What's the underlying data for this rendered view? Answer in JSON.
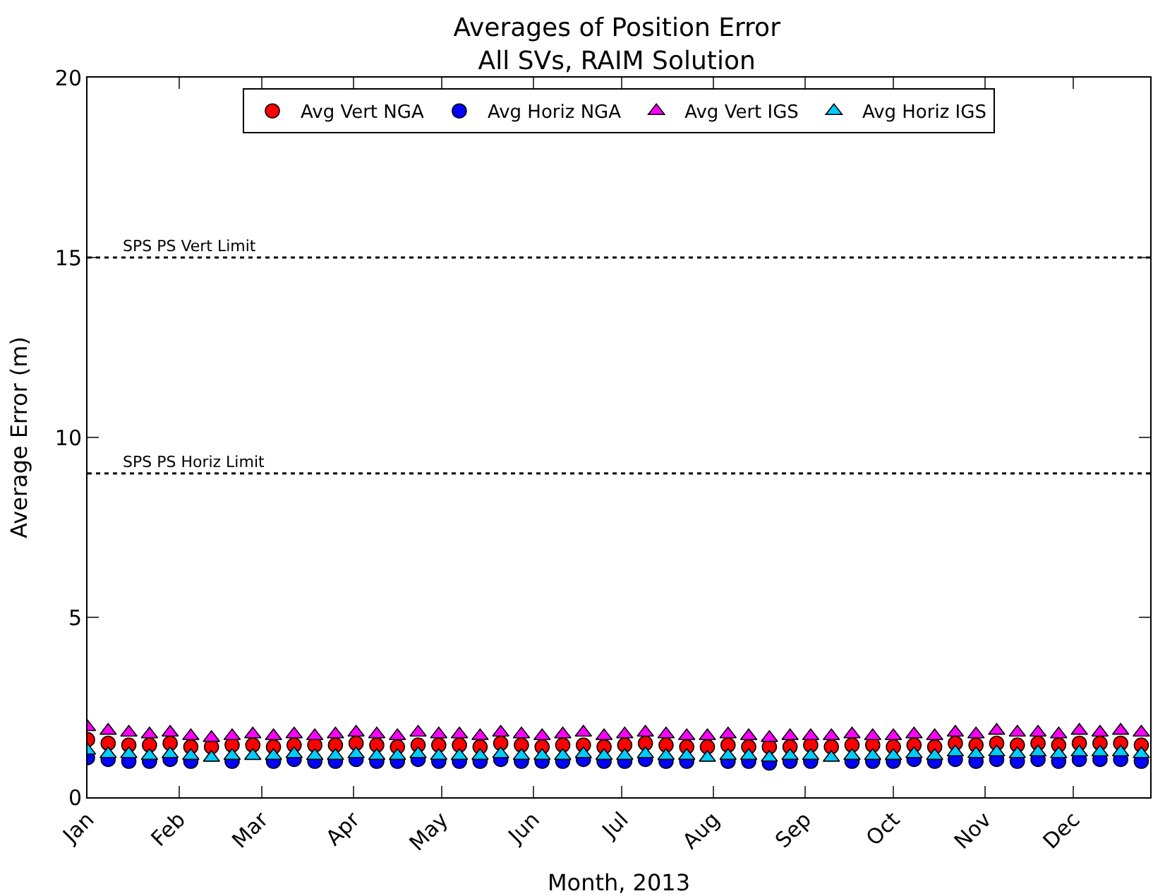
{
  "chart_data": {
    "type": "scatter",
    "title": "Averages of Position Error",
    "subtitle": "All SVs, RAIM Solution",
    "xlabel": "Month, 2013",
    "ylabel": "Average Error (m)",
    "x": [
      "2013-01-01",
      "2013-01-08",
      "2013-01-15",
      "2013-01-22",
      "2013-01-29",
      "2013-02-05",
      "2013-02-12",
      "2013-02-19",
      "2013-02-26",
      "2013-03-05",
      "2013-03-12",
      "2013-03-19",
      "2013-03-26",
      "2013-04-02",
      "2013-04-09",
      "2013-04-16",
      "2013-04-23",
      "2013-04-30",
      "2013-05-07",
      "2013-05-14",
      "2013-05-21",
      "2013-05-28",
      "2013-06-04",
      "2013-06-11",
      "2013-06-18",
      "2013-06-25",
      "2013-07-02",
      "2013-07-09",
      "2013-07-16",
      "2013-07-23",
      "2013-07-30",
      "2013-08-06",
      "2013-08-13",
      "2013-08-20",
      "2013-08-27",
      "2013-09-03",
      "2013-09-10",
      "2013-09-17",
      "2013-09-24",
      "2013-10-01",
      "2013-10-08",
      "2013-10-15",
      "2013-10-22",
      "2013-10-29",
      "2013-11-05",
      "2013-11-12",
      "2013-11-19",
      "2013-11-26",
      "2013-12-03",
      "2013-12-10",
      "2013-12-17",
      "2013-12-24"
    ],
    "series": [
      {
        "name": "Avg Vert NGA",
        "color": "#ff0000",
        "marker": "circle",
        "values": [
          1.6,
          1.5,
          1.45,
          1.45,
          1.5,
          1.4,
          1.4,
          1.45,
          1.45,
          1.4,
          1.45,
          1.45,
          1.45,
          1.5,
          1.45,
          1.4,
          1.45,
          1.45,
          1.45,
          1.4,
          1.5,
          1.45,
          1.4,
          1.45,
          1.45,
          1.4,
          1.45,
          1.5,
          1.45,
          1.4,
          1.4,
          1.45,
          1.4,
          1.4,
          1.4,
          1.45,
          1.4,
          1.45,
          1.45,
          1.4,
          1.45,
          1.4,
          1.5,
          1.45,
          1.5,
          1.45,
          1.5,
          1.45,
          1.5,
          1.5,
          1.5,
          1.45
        ]
      },
      {
        "name": "Avg Horiz NGA",
        "color": "#0000ff",
        "marker": "circle",
        "values": [
          1.1,
          1.05,
          1.0,
          1.0,
          1.05,
          1.0,
          null,
          1.0,
          null,
          1.0,
          1.05,
          1.0,
          1.0,
          1.05,
          1.0,
          1.0,
          1.05,
          1.0,
          1.0,
          1.0,
          1.05,
          1.0,
          1.0,
          1.0,
          1.05,
          1.0,
          1.0,
          1.05,
          1.0,
          1.0,
          null,
          1.0,
          1.0,
          0.95,
          1.0,
          1.0,
          null,
          1.0,
          1.0,
          1.0,
          1.05,
          1.0,
          1.05,
          1.0,
          1.05,
          1.0,
          1.05,
          1.0,
          1.05,
          1.05,
          1.05,
          1.0
        ]
      },
      {
        "name": "Avg Vert IGS",
        "color": "#ff00ff",
        "marker": "triangle",
        "values": [
          1.95,
          1.85,
          1.8,
          1.75,
          1.8,
          1.7,
          1.65,
          1.7,
          1.75,
          1.7,
          1.75,
          1.7,
          1.75,
          1.8,
          1.75,
          1.7,
          1.8,
          1.75,
          1.75,
          1.7,
          1.8,
          1.75,
          1.7,
          1.75,
          1.8,
          1.7,
          1.75,
          1.8,
          1.75,
          1.7,
          1.7,
          1.75,
          1.7,
          1.65,
          1.7,
          1.7,
          1.7,
          1.75,
          1.7,
          1.7,
          1.75,
          1.7,
          1.8,
          1.75,
          1.85,
          1.8,
          1.8,
          1.75,
          1.85,
          1.8,
          1.85,
          1.8
        ]
      },
      {
        "name": "Avg Horiz IGS",
        "color": "#00ccff",
        "marker": "triangle",
        "values": [
          1.3,
          1.2,
          1.2,
          1.15,
          1.2,
          1.15,
          1.1,
          1.15,
          1.15,
          1.15,
          1.2,
          1.15,
          1.15,
          1.2,
          1.15,
          1.15,
          1.2,
          1.15,
          1.15,
          1.15,
          1.2,
          1.15,
          1.15,
          1.15,
          1.2,
          1.15,
          1.15,
          1.2,
          1.15,
          1.15,
          1.1,
          1.15,
          1.15,
          1.1,
          1.15,
          1.15,
          1.1,
          1.15,
          1.15,
          1.15,
          1.2,
          1.15,
          1.25,
          1.2,
          1.25,
          1.2,
          1.25,
          1.2,
          1.25,
          1.25,
          1.25,
          1.2
        ]
      }
    ],
    "xlim": [
      "2013-01-01",
      "2013-12-27"
    ],
    "xticks": [
      {
        "value": "2013-01-01",
        "label": "Jan"
      },
      {
        "value": "2013-02-01",
        "label": "Feb"
      },
      {
        "value": "2013-03-01",
        "label": "Mar"
      },
      {
        "value": "2013-04-01",
        "label": "Apr"
      },
      {
        "value": "2013-05-01",
        "label": "May"
      },
      {
        "value": "2013-06-01",
        "label": "Jun"
      },
      {
        "value": "2013-07-01",
        "label": "Jul"
      },
      {
        "value": "2013-08-01",
        "label": "Aug"
      },
      {
        "value": "2013-09-01",
        "label": "Sep"
      },
      {
        "value": "2013-10-01",
        "label": "Oct"
      },
      {
        "value": "2013-11-01",
        "label": "Nov"
      },
      {
        "value": "2013-12-01",
        "label": "Dec"
      }
    ],
    "ylim": [
      0,
      20
    ],
    "yticks": [
      0,
      5,
      10,
      15,
      20
    ],
    "ref_lines": [
      {
        "axis": "y",
        "value": 15,
        "label": "SPS PS Vert Limit",
        "color": "#000000",
        "line_style": "dotted"
      },
      {
        "axis": "y",
        "value": 9,
        "label": "SPS PS Horiz Limit",
        "color": "#000000",
        "line_style": "dotted"
      }
    ],
    "grid": false,
    "legend": "top"
  }
}
